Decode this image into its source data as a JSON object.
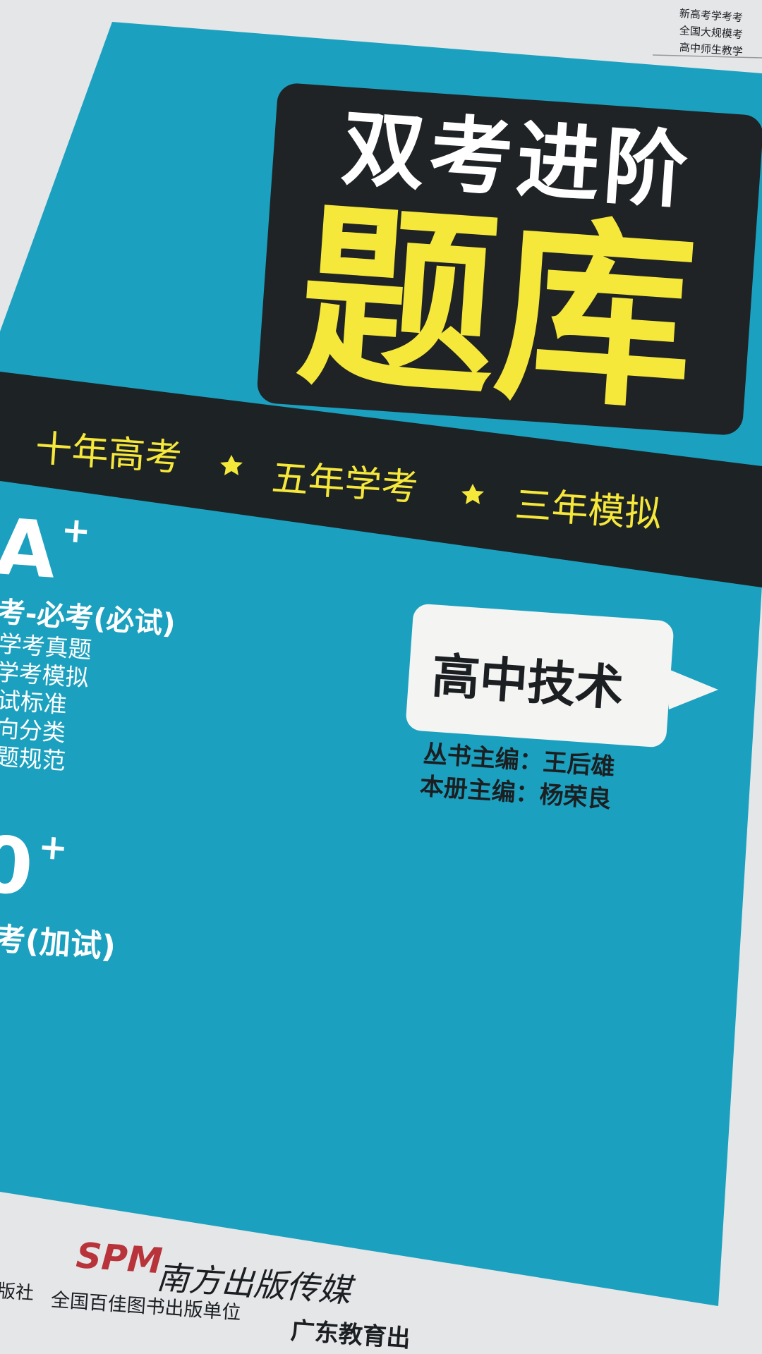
{
  "header_notes": [
    "新高考学考考",
    "全国大规模考",
    "高中师生教学"
  ],
  "cover": {
    "title_top": "双考进阶",
    "title_main": "题库",
    "tagline": [
      "十年高考",
      "五年学考",
      "三年模拟"
    ],
    "left_block": {
      "grade": "A",
      "grade_sup": "+",
      "subtitle": "考-必考(必试)",
      "features": [
        "学考真题",
        "学考模拟",
        "试标准",
        "向分类",
        "题规范"
      ],
      "score": "0",
      "score_sup": "+",
      "score_label": "考(加试)"
    },
    "subject": "高中技术",
    "series_editor": "丛书主编：王后雄",
    "volume_editor": "本册主编：杨荣良"
  },
  "footer": {
    "logo": "SPM",
    "publisher": "南方出版传媒",
    "line": [
      "版社",
      "全国百佳图书出版单位",
      "广东教育出"
    ]
  }
}
